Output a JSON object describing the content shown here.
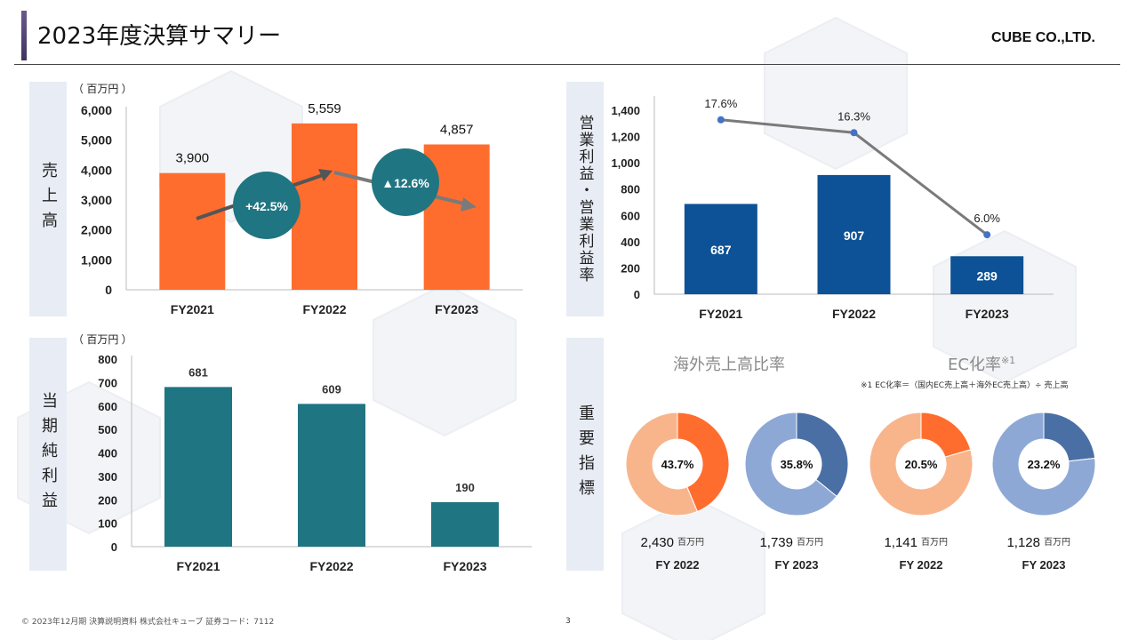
{
  "header": {
    "title": "2023年度決算サマリー",
    "company": "CUBE CO.,LTD."
  },
  "footer": {
    "copyright": "© 2023年12月期 決算説明資料 株式会社キューブ 証券コード：7112",
    "page_number": "3"
  },
  "colors": {
    "orange": "#ff6d2e",
    "teal": "#1f7581",
    "navy": "#0d5296",
    "line_gray": "#7a7a7a",
    "marker_blue": "#4472c4",
    "panel_label_bg": "#e8edf5",
    "donut_orange": "#ff6d2e",
    "donut_orange_light": "#f8b58c",
    "donut_blue": "#4a6fa5",
    "donut_blue_light": "#8ea8d6"
  },
  "panels": {
    "sales_label": "売上高",
    "op_label": "営業利益・営業利益率",
    "net_label": "当期純利益",
    "kpi_label": "重要指標"
  },
  "chart_data": [
    {
      "id": "sales",
      "type": "bar",
      "title": "売上高",
      "unit_label": "（ 百万円 ）",
      "categories": [
        "FY2021",
        "FY2022",
        "FY2023"
      ],
      "values": [
        3900,
        5559,
        4857
      ],
      "value_labels": [
        "3,900",
        "5,559",
        "4,857"
      ],
      "ylim": [
        0,
        6000
      ],
      "yticks": [
        "0",
        "1,000",
        "2,000",
        "3,000",
        "4,000",
        "5,000",
        "6,000"
      ],
      "annotations": [
        "+42.5%",
        "▲12.6%"
      ]
    },
    {
      "id": "operating",
      "type": "bar+line",
      "title": "営業利益・営業利益率",
      "categories": [
        "FY2021",
        "FY2022",
        "FY2023"
      ],
      "values": [
        687,
        907,
        289
      ],
      "value_labels": [
        "687",
        "907",
        "289"
      ],
      "margin_values": [
        17.6,
        16.3,
        6.0
      ],
      "margin_labels": [
        "17.6%",
        "16.3%",
        "6.0%"
      ],
      "ylim": [
        0,
        1400
      ],
      "yticks": [
        "0",
        "200",
        "400",
        "600",
        "800",
        "1,000",
        "1,200",
        "1,400"
      ]
    },
    {
      "id": "net_income",
      "type": "bar",
      "title": "当期純利益",
      "unit_label": "（ 百万円 ）",
      "categories": [
        "FY2021",
        "FY2022",
        "FY2023"
      ],
      "values": [
        681,
        609,
        190
      ],
      "value_labels": [
        "681",
        "609",
        "190"
      ],
      "ylim": [
        0,
        800
      ],
      "yticks": [
        "0",
        "100",
        "200",
        "300",
        "400",
        "500",
        "600",
        "700",
        "800"
      ]
    },
    {
      "id": "kpi",
      "type": "pie",
      "groups": [
        {
          "title": "海外売上高比率",
          "title_sup": ""
        },
        {
          "title": "EC化率",
          "title_sup": "※1",
          "note": "※1 EC化率＝（国内EC売上高＋海外EC売上高）÷ 売上高"
        }
      ],
      "donuts": [
        {
          "percent": 43.7,
          "label": "43.7%",
          "amount": "2,430",
          "unit": "百万円",
          "year": "FY 2022",
          "scheme": "orange"
        },
        {
          "percent": 35.8,
          "label": "35.8%",
          "amount": "1,739",
          "unit": "百万円",
          "year": "FY 2023",
          "scheme": "blue"
        },
        {
          "percent": 20.5,
          "label": "20.5%",
          "amount": "1,141",
          "unit": "百万円",
          "year": "FY 2022",
          "scheme": "orange"
        },
        {
          "percent": 23.2,
          "label": "23.2%",
          "amount": "1,128",
          "unit": "百万円",
          "year": "FY 2023",
          "scheme": "blue"
        }
      ]
    }
  ]
}
